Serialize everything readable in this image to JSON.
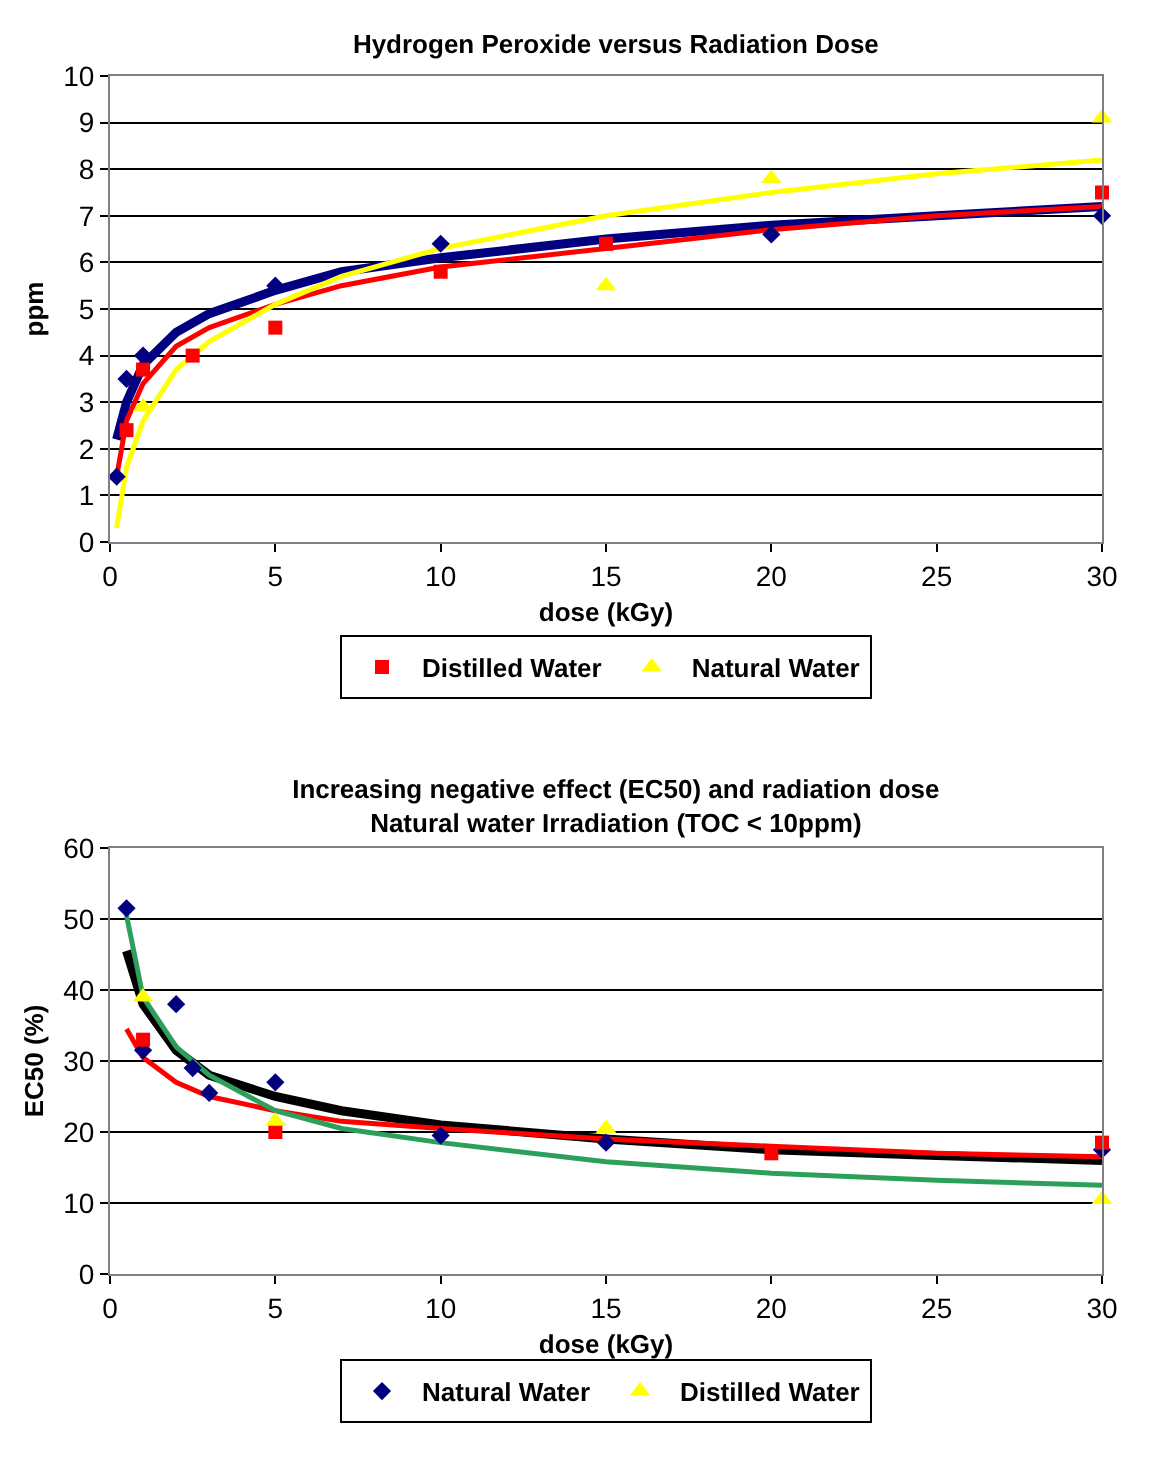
{
  "chart_data": [
    {
      "type": "scatter",
      "title": "Hydrogen Peroxide versus Radiation Dose",
      "xlabel": "dose (kGy)",
      "ylabel": "ppm",
      "xlim": [
        0,
        30
      ],
      "xticks": [
        0,
        5,
        10,
        15,
        20,
        25,
        30
      ],
      "ylim": [
        0,
        10
      ],
      "yticks": [
        0,
        1,
        2,
        3,
        4,
        5,
        6,
        7,
        8,
        9,
        10
      ],
      "grid": "y",
      "legend": "bottom",
      "series": [
        {
          "color": "#000080",
          "marker": "diamond",
          "x": [
            0.2,
            0.5,
            1,
            5,
            10,
            20,
            30
          ],
          "values": [
            1.4,
            3.5,
            4.0,
            5.5,
            6.4,
            6.6,
            7.0
          ]
        },
        {
          "name": "Distilled Water",
          "color": "#ff0000",
          "marker": "square",
          "x": [
            0.5,
            1,
            2.5,
            5,
            10,
            15,
            30
          ],
          "values": [
            2.4,
            3.7,
            4.0,
            4.6,
            5.8,
            6.4,
            7.5
          ]
        },
        {
          "name": "Natural Water",
          "color": "#ffff00",
          "marker": "triangle",
          "x": [
            1,
            15,
            20,
            30
          ],
          "values": [
            2.9,
            5.5,
            7.8,
            9.1
          ]
        },
        {
          "type": "line",
          "color": "#000080",
          "marker": "none",
          "line_style": "solid",
          "x": [
            0.2,
            0.5,
            1,
            2,
            3,
            5,
            7,
            10,
            15,
            20,
            25,
            30
          ],
          "values": [
            2.2,
            3.0,
            3.8,
            4.5,
            4.9,
            5.4,
            5.8,
            6.1,
            6.5,
            6.8,
            7.0,
            7.2
          ]
        },
        {
          "type": "line",
          "color": "#ff0000",
          "marker": "none",
          "line_style": "solid",
          "x": [
            0.2,
            0.5,
            1,
            2,
            3,
            5,
            7,
            10,
            15,
            20,
            25,
            30
          ],
          "values": [
            1.4,
            2.6,
            3.4,
            4.2,
            4.6,
            5.1,
            5.5,
            5.9,
            6.3,
            6.7,
            7.0,
            7.2
          ]
        },
        {
          "type": "line",
          "color": "#ffff00",
          "marker": "none",
          "line_style": "solid",
          "x": [
            0.2,
            0.5,
            1,
            2,
            3,
            5,
            7,
            10,
            15,
            20,
            25,
            30
          ],
          "values": [
            0.3,
            1.6,
            2.6,
            3.7,
            4.3,
            5.1,
            5.7,
            6.3,
            7.0,
            7.5,
            7.9,
            8.2
          ]
        }
      ]
    },
    {
      "type": "scatter",
      "title": "Increasing negative effect (EC50) and radiation dose",
      "subtitle": "Natural water Irradiation (TOC < 10ppm)",
      "xlabel": "dose (kGy)",
      "ylabel": "EC50 (%)",
      "xlim": [
        0,
        30
      ],
      "xticks": [
        0,
        5,
        10,
        15,
        20,
        25,
        30
      ],
      "ylim": [
        0,
        60
      ],
      "yticks": [
        0,
        10,
        20,
        30,
        40,
        50,
        60
      ],
      "grid": "y",
      "legend": "bottom",
      "series": [
        {
          "name": "Natural Water",
          "color": "#000080",
          "marker": "diamond",
          "x": [
            0.5,
            1,
            2,
            2.5,
            3,
            5,
            10,
            15,
            30
          ],
          "values": [
            51.5,
            31.5,
            38,
            29,
            25.5,
            27,
            19.5,
            18.5,
            17.5
          ]
        },
        {
          "color": "#ff0000",
          "marker": "square",
          "x": [
            1,
            5,
            20,
            30
          ],
          "values": [
            33,
            20,
            17,
            18.5
          ]
        },
        {
          "name": "Distilled Water",
          "color": "#ffff00",
          "marker": "triangle",
          "x": [
            1,
            5,
            15,
            30
          ],
          "values": [
            39,
            21.5,
            20.5,
            10.5
          ]
        },
        {
          "type": "line",
          "color": "#000000",
          "marker": "none",
          "line_style": "solid",
          "x": [
            0.5,
            1,
            2,
            3,
            5,
            7,
            10,
            15,
            20,
            25,
            30
          ],
          "values": [
            45.5,
            38,
            31.5,
            28,
            25,
            23,
            21,
            19,
            17.5,
            16.7,
            16
          ]
        },
        {
          "type": "line",
          "color": "#ff0000",
          "marker": "none",
          "line_style": "solid",
          "x": [
            0.5,
            1,
            2,
            3,
            5,
            7,
            10,
            15,
            20,
            25,
            30
          ],
          "values": [
            34.5,
            30.5,
            27,
            25,
            23,
            21.5,
            20.5,
            19,
            18,
            17,
            16.5
          ]
        },
        {
          "type": "line",
          "color": "#2ca05a",
          "marker": "none",
          "line_style": "solid",
          "x": [
            0.5,
            1,
            2,
            3,
            5,
            7,
            10,
            15,
            20,
            25,
            30
          ],
          "values": [
            50.5,
            39,
            32,
            28,
            23,
            20.5,
            18.5,
            15.8,
            14.2,
            13.2,
            12.5
          ]
        }
      ]
    }
  ]
}
